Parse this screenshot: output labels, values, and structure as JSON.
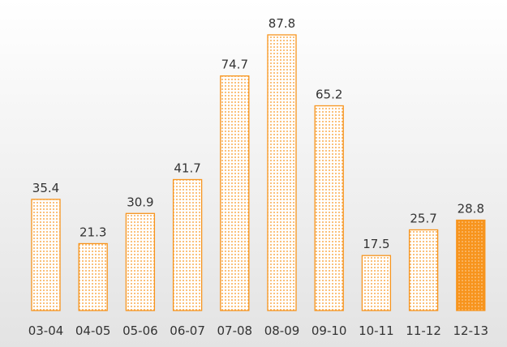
{
  "chart_data": {
    "type": "bar",
    "title": "",
    "xlabel": "",
    "ylabel": "",
    "categories": [
      "03-04",
      "04-05",
      "05-06",
      "06-07",
      "07-08",
      "08-09",
      "09-10",
      "10-11",
      "11-12",
      "12-13"
    ],
    "values": [
      35.4,
      21.3,
      30.9,
      41.7,
      74.7,
      87.8,
      65.2,
      17.5,
      25.7,
      28.8
    ],
    "value_labels": [
      "35.4",
      "21.3",
      "30.9",
      "41.7",
      "74.7",
      "87.8",
      "65.2",
      "17.5",
      "25.7",
      "28.8"
    ],
    "highlighted_category": "12-13",
    "ylim": [
      0,
      87.8
    ],
    "grid": false,
    "legend": "none",
    "colors": {
      "bar": "#f7941d",
      "background_gradient_top": "#ffffff",
      "background_gradient_bottom": "#e3e3e3",
      "text": "#333333"
    }
  }
}
